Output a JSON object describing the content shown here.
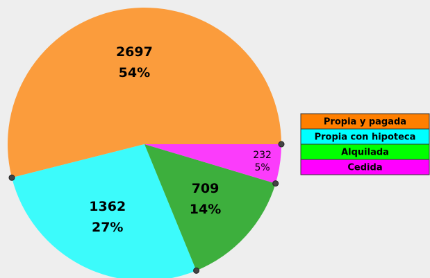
{
  "chart_data": {
    "type": "pie",
    "categories": [
      "Propia y pagada",
      "Propia con hipoteca",
      "Alquilada",
      "Cedida"
    ],
    "values": [
      2697,
      1362,
      709,
      232
    ],
    "percentages": [
      54,
      27,
      14,
      5
    ],
    "percentage_labels": [
      "54%",
      "27%",
      "14%",
      "5%"
    ],
    "colors": [
      "#fb9c3c",
      "#3cfbfb",
      "#3daf3d",
      "#fb3cfb"
    ],
    "legend_colors": [
      "#ff7f00",
      "#00ffff",
      "#00ff00",
      "#ff00ff"
    ],
    "legend": "right"
  }
}
